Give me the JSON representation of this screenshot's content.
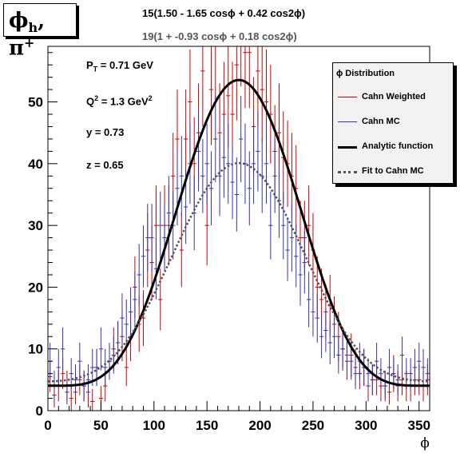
{
  "title": "ϕh, π+",
  "fit_lines": {
    "top": "15(1.50 - 1.65 cosϕ + 0.42 cos2ϕ)",
    "bottom": "19(1 + -0.93 cosϕ + 0.18 cos2ϕ)"
  },
  "info": {
    "pt": "PT = 0.71 GeV",
    "q2": "Q2 = 1.3 GeV2",
    "y": "y = 0.73",
    "z": "z = 0.65"
  },
  "legend": {
    "header": "ϕ Distribution",
    "items": [
      "Cahn Weighted",
      "Cahn MC",
      "Analytic function",
      "Fit to Cahn MC"
    ]
  },
  "chart_data": {
    "type": "line",
    "xlabel": "ϕ",
    "ylabel": "",
    "xlim": [
      0,
      360
    ],
    "ylim": [
      0,
      59
    ],
    "xticks": [
      0,
      50,
      100,
      150,
      200,
      250,
      300,
      350
    ],
    "yticks": [
      0,
      10,
      20,
      30,
      40,
      50
    ],
    "bin_width": 4,
    "series": [
      {
        "name": "Cahn Weighted",
        "color": "#cc0000",
        "style": "errorbars",
        "x": [
          2,
          6,
          10,
          14,
          18,
          22,
          26,
          30,
          34,
          38,
          42,
          46,
          50,
          54,
          58,
          62,
          66,
          70,
          74,
          78,
          82,
          86,
          90,
          94,
          98,
          102,
          106,
          110,
          114,
          118,
          122,
          126,
          130,
          134,
          138,
          142,
          146,
          150,
          154,
          158,
          162,
          166,
          170,
          174,
          178,
          182,
          186,
          190,
          194,
          198,
          202,
          206,
          210,
          214,
          218,
          222,
          226,
          230,
          234,
          238,
          242,
          246,
          250,
          254,
          258,
          262,
          266,
          270,
          274,
          278,
          282,
          286,
          290,
          294,
          298,
          302,
          306,
          310,
          314,
          318,
          322,
          326,
          330,
          334,
          338,
          342,
          346,
          350,
          354,
          358
        ],
        "y": [
          5.5,
          2.5,
          4,
          6,
          4,
          2,
          3,
          5,
          4,
          3,
          1.5,
          7,
          2,
          4,
          8,
          10,
          11,
          12,
          7,
          12,
          20,
          14,
          15,
          26,
          24,
          30,
          18,
          30,
          30,
          38,
          44,
          26,
          44,
          50,
          40,
          45,
          55,
          30,
          52,
          60,
          45,
          48,
          51,
          48,
          56,
          62,
          58,
          58,
          46,
          55,
          52,
          50,
          48,
          42,
          45,
          41,
          40,
          38,
          36,
          28,
          28,
          30,
          26,
          20,
          18,
          16,
          17,
          14,
          12,
          10,
          8,
          9,
          7,
          6,
          7,
          4,
          5,
          5,
          4,
          4,
          3,
          6,
          4,
          5,
          4,
          4,
          5,
          5,
          4,
          5
        ],
        "err": [
          2.5,
          2,
          2.5,
          2.5,
          2.5,
          2,
          2,
          2.5,
          2.5,
          2.5,
          2,
          3,
          2,
          2.5,
          3,
          3.5,
          3.5,
          4,
          3,
          4,
          5,
          4.5,
          4.5,
          6,
          6,
          6.5,
          5,
          6.5,
          6.5,
          7,
          8,
          6,
          8,
          8.5,
          7.5,
          8,
          9,
          6.5,
          9,
          9.5,
          8,
          8.5,
          8.5,
          8.5,
          9,
          9.5,
          9,
          9,
          8,
          9,
          8.5,
          8.5,
          8,
          7.5,
          8,
          7.5,
          7,
          7,
          7,
          6,
          6,
          6.5,
          6,
          5,
          5,
          4.5,
          5,
          4.5,
          4,
          3.5,
          3,
          3.5,
          3,
          2.5,
          3,
          2.5,
          2.5,
          2.5,
          2.5,
          2.5,
          2,
          3,
          2.5,
          2.5,
          2.5,
          2.5,
          2.5,
          2.5,
          2.5,
          2.5
        ]
      },
      {
        "name": "Cahn MC",
        "color": "#3333aa",
        "style": "errorbars",
        "x": [
          2,
          6,
          10,
          14,
          18,
          22,
          26,
          30,
          34,
          38,
          42,
          46,
          50,
          54,
          58,
          62,
          66,
          70,
          74,
          78,
          82,
          86,
          90,
          94,
          98,
          102,
          106,
          110,
          114,
          118,
          122,
          126,
          130,
          134,
          138,
          142,
          146,
          150,
          154,
          158,
          162,
          166,
          170,
          174,
          178,
          182,
          186,
          190,
          194,
          198,
          202,
          206,
          210,
          214,
          218,
          222,
          226,
          230,
          234,
          238,
          242,
          246,
          250,
          254,
          258,
          262,
          266,
          270,
          274,
          278,
          282,
          286,
          290,
          294,
          298,
          302,
          306,
          310,
          314,
          318,
          322,
          326,
          330,
          334,
          338,
          342,
          346,
          350,
          354,
          358
        ],
        "y": [
          8,
          4,
          7,
          10,
          3,
          6,
          5,
          8,
          4,
          5,
          7,
          7,
          10,
          7,
          8,
          9,
          11,
          15,
          14,
          16,
          18,
          22,
          25,
          28,
          28,
          23,
          30,
          28,
          32,
          30,
          36,
          38,
          33,
          40,
          32,
          42,
          38,
          40,
          36,
          44,
          38,
          41,
          40,
          37,
          35,
          44,
          40,
          36,
          40,
          42,
          38,
          40,
          30,
          38,
          34,
          30,
          26,
          28,
          25,
          22,
          24,
          18,
          16,
          15,
          12,
          13,
          11,
          12,
          9,
          10,
          9,
          8,
          6,
          8,
          7,
          6,
          5,
          8,
          6,
          4,
          7,
          6,
          5,
          9,
          6,
          6,
          7,
          8,
          7,
          6
        ],
        "err": [
          3,
          2.5,
          3,
          3.5,
          2,
          2.5,
          2.5,
          3,
          2.5,
          2.5,
          3,
          3,
          3.5,
          3,
          3,
          3,
          3.5,
          4,
          4,
          4,
          4.5,
          5,
          5,
          5.5,
          5.5,
          5,
          5.5,
          5.5,
          6,
          5.5,
          6,
          6.5,
          6,
          6.5,
          6,
          6.5,
          6,
          6.5,
          6,
          7,
          6.5,
          6.5,
          6.5,
          6,
          6,
          7,
          6.5,
          6,
          6.5,
          6.5,
          6,
          6.5,
          5.5,
          6,
          6,
          5.5,
          5,
          5.5,
          5,
          5,
          5,
          4.5,
          4,
          4,
          3.5,
          3.5,
          3.5,
          3.5,
          3,
          3,
          3,
          3,
          2.5,
          3,
          3,
          2.5,
          2.5,
          3,
          2.5,
          2,
          3,
          2.5,
          2.5,
          3,
          2.5,
          2.5,
          3,
          3,
          3,
          2.5
        ]
      },
      {
        "name": "Analytic function",
        "color": "#000000",
        "style": "solid",
        "function": "15*(1.50 - 1.65*cos(phi) + 0.42*cos(2*phi))"
      },
      {
        "name": "Fit to Cahn MC",
        "color": "#555555",
        "style": "dotted",
        "function": "19*(1 - 0.93*cos(phi) + 0.18*cos(2*phi))"
      }
    ]
  }
}
